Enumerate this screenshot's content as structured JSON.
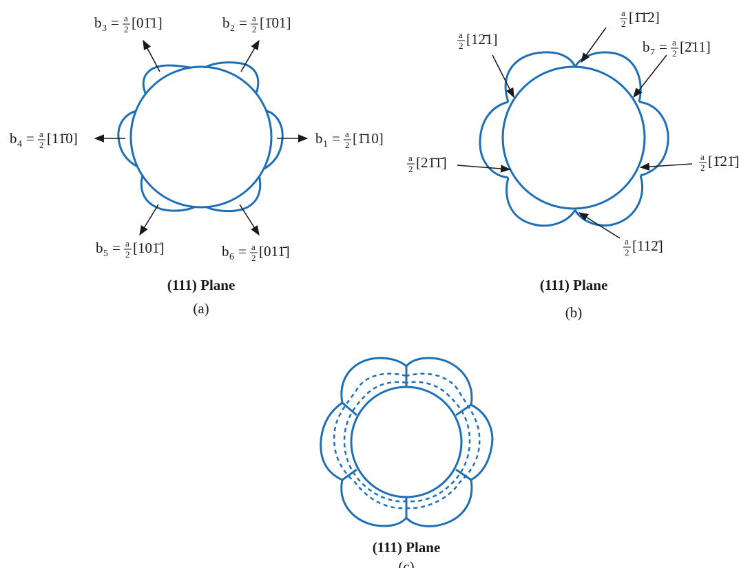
{
  "colors": {
    "loop": "#1e6fb5",
    "text": "#1a1a1a",
    "background": "#ffffff"
  },
  "panel_a": {
    "title": "(111) Plane",
    "caption": "(a)",
    "labels": {
      "b1": {
        "name": "b",
        "sub": "1",
        "eq": "=",
        "num": "a",
        "den": "2",
        "dir": "[1̄10]"
      },
      "b2": {
        "name": "b",
        "sub": "2",
        "eq": "=",
        "num": "a",
        "den": "2",
        "dir": "[1̄01]"
      },
      "b3": {
        "name": "b",
        "sub": "3",
        "eq": "=",
        "num": "a",
        "den": "2",
        "dir": "[01̄1]"
      },
      "b4": {
        "name": "b",
        "sub": "4",
        "eq": "=",
        "num": "a",
        "den": "2",
        "dir": "[11̄0]"
      },
      "b5": {
        "name": "b",
        "sub": "5",
        "eq": "=",
        "num": "a",
        "den": "2",
        "dir": "[101̄]"
      },
      "b6": {
        "name": "b",
        "sub": "6",
        "eq": "=",
        "num": "a",
        "den": "2",
        "dir": "[011̄]"
      }
    }
  },
  "panel_b": {
    "title": "(111) Plane",
    "caption": "(b)",
    "labels": {
      "top": {
        "num": "a",
        "den": "2",
        "dir": "[1̄1̄2]"
      },
      "upper_left": {
        "num": "a",
        "den": "2",
        "dir": "[12̄1]"
      },
      "upper_right": {
        "name": "b",
        "sub": "7",
        "eq": "=",
        "num": "a",
        "den": "2",
        "dir": "[2̄11]"
      },
      "left": {
        "num": "a",
        "den": "2",
        "dir": "[21̄1̄]"
      },
      "right": {
        "num": "a",
        "den": "2",
        "dir": "[1̄21̄]"
      },
      "bottom": {
        "num": "a",
        "den": "2",
        "dir": "[112̄]"
      }
    }
  },
  "panel_c": {
    "title": "(111) Plane",
    "caption": "(c)"
  }
}
